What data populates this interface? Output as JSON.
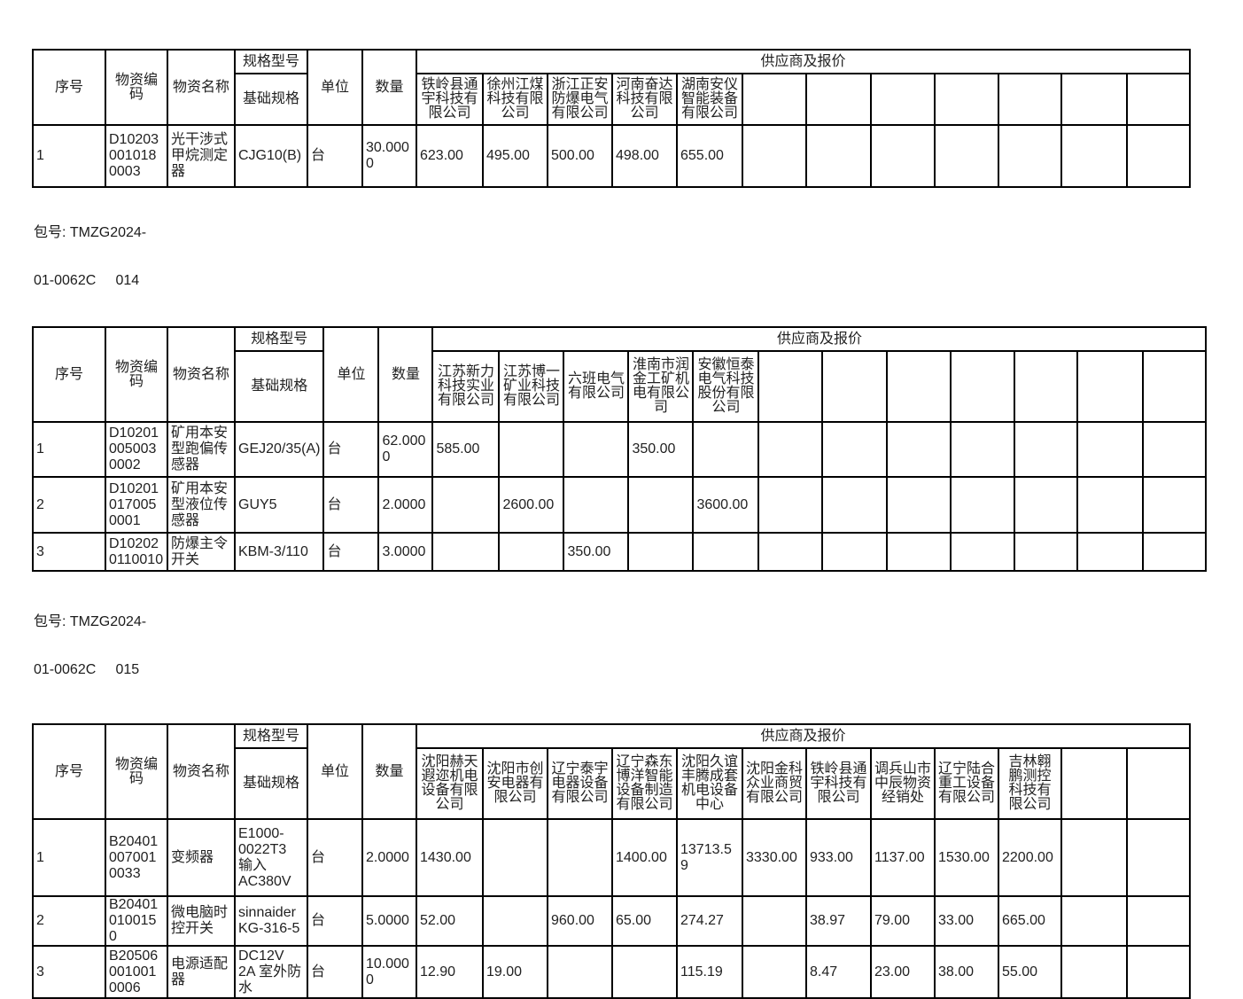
{
  "labels": {
    "seq": "序号",
    "code": "物资编码",
    "name": "物资名称",
    "spec_model": "规格型号",
    "base_spec": "基础规格",
    "unit": "单位",
    "qty": "数量",
    "suppliers": "供应商及报价"
  },
  "package_notes": [
    {
      "line1": "包号: TMZG2024-",
      "line2": "01-0062C     014"
    },
    {
      "line1": "包号: TMZG2024-",
      "line2": "01-0062C     015"
    }
  ],
  "tables": [
    {
      "suppliers": [
        "铁岭县通宇科技有限公司",
        "徐州江煤科技有限公司",
        "浙江正安防爆电气有限公司",
        "河南奋达科技有限公司",
        "湖南安仪智能装备有限公司",
        "",
        "",
        "",
        "",
        "",
        "",
        ""
      ],
      "rows": [
        {
          "seq": "1",
          "code": "D102030010180003",
          "name": "光干涉式甲烷测定器",
          "spec": "CJG10(B)",
          "unit": "台",
          "qty": "30.0000",
          "prices": [
            "623.00",
            "495.00",
            "500.00",
            "498.00",
            "655.00",
            "",
            "",
            "",
            "",
            "",
            "",
            ""
          ]
        }
      ]
    },
    {
      "suppliers": [
        "江苏新力科技实业有限公司",
        "江苏博一矿业科技有限公司",
        "六班电气有限公司",
        "淮南市润金工矿机电有限公司",
        "安徽恒泰电气科技股份有限公司",
        "",
        "",
        "",
        "",
        "",
        "",
        ""
      ],
      "rows": [
        {
          "seq": "1",
          "code": "D102010050030002",
          "name": "矿用本安型跑偏传感器",
          "spec": "GEJ20/35(A)",
          "unit": "台",
          "qty": "62.0000",
          "prices": [
            "585.00",
            "",
            "",
            "350.00",
            "",
            "",
            "",
            "",
            "",
            "",
            "",
            ""
          ]
        },
        {
          "seq": "2",
          "code": "D102010170050001",
          "name": "矿用本安型液位传感器",
          "spec": "GUY5",
          "unit": "台",
          "qty": "2.0000",
          "prices": [
            "",
            "2600.00",
            "",
            "",
            "3600.00",
            "",
            "",
            "",
            "",
            "",
            "",
            ""
          ]
        },
        {
          "seq": "3",
          "code": "D102020110010",
          "name": "防爆主令开关",
          "spec": "KBM-3/110",
          "unit": "台",
          "qty": "3.0000",
          "prices": [
            "",
            "",
            "350.00",
            "",
            "",
            "",
            "",
            "",
            "",
            "",
            "",
            ""
          ]
        }
      ]
    },
    {
      "suppliers": [
        "沈阳赫天遐迩机电设备有限公司",
        "沈阳市创安电器有限公司",
        "辽宁泰宇电器设备有限公司",
        "辽宁森东博洋智能设备制造有限公司",
        "沈阳久谊丰腾成套机电设备中心",
        "沈阳金科众业商贸有限公司",
        "铁岭县通宇科技有限公司",
        "调兵山市中辰物资经销处",
        "辽宁陆合重工设备有限公司",
        "吉林翱鹏测控科技有限公司",
        "",
        ""
      ],
      "rows": [
        {
          "seq": "1",
          "code": "B204010070010033",
          "name": "变频器",
          "spec": "E1000-0022T3 输入AC380V",
          "unit": "台",
          "qty": "2.0000",
          "prices": [
            "1430.00",
            "",
            "",
            "1400.00",
            "13713.59",
            "3330.00",
            "933.00",
            "1137.00",
            "1530.00",
            "2200.00",
            "",
            ""
          ]
        },
        {
          "seq": "2",
          "code": "B204010100150",
          "name": "微电脑时控开关",
          "spec": "sinnaider KG-316-5",
          "unit": "台",
          "qty": "5.0000",
          "prices": [
            "52.00",
            "",
            "960.00",
            "65.00",
            "274.27",
            "",
            "38.97",
            "79.00",
            "33.00",
            "665.00",
            "",
            ""
          ]
        },
        {
          "seq": "3",
          "code": "B205060010010006",
          "name": "电源适配器",
          "spec": "DC12V 2A 室外防水",
          "unit": "台",
          "qty": "10.0000",
          "prices": [
            "12.90",
            "19.00",
            "",
            "",
            "115.19",
            "",
            "8.47",
            "23.00",
            "38.00",
            "55.00",
            "",
            ""
          ]
        }
      ]
    }
  ]
}
